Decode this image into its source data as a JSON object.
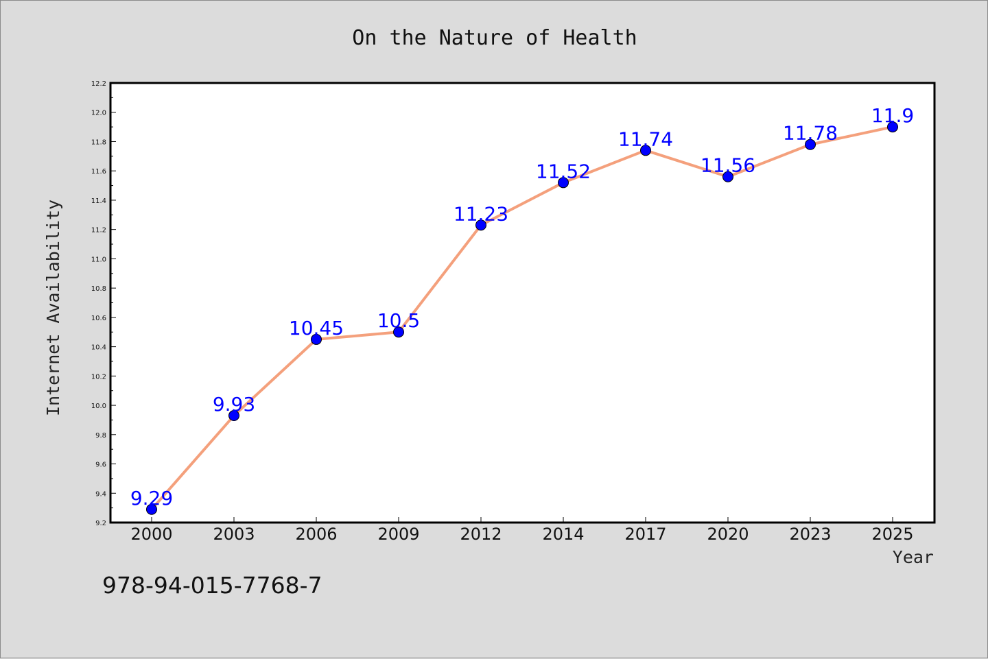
{
  "chart_data": {
    "type": "line",
    "title": "On the Nature of Health",
    "xlabel": "Year",
    "ylabel": "Internet Availability",
    "categories": [
      "2000",
      "2003",
      "2006",
      "2009",
      "2012",
      "2014",
      "2017",
      "2020",
      "2023",
      "2025"
    ],
    "series": [
      {
        "values": [
          9.29,
          9.93,
          10.45,
          10.5,
          11.23,
          11.52,
          11.74,
          11.56,
          11.78,
          11.9
        ]
      }
    ],
    "data_labels": [
      "9.29",
      "9.93",
      "10.45",
      "10.5",
      "11.23",
      "11.52",
      "11.74",
      "11.56",
      "11.78",
      "11.9"
    ],
    "ylim": [
      9.2,
      12.2
    ],
    "yticks": [
      "9.2",
      "9.4",
      "9.6",
      "9.8",
      "10.0",
      "10.2",
      "10.4",
      "10.6",
      "10.8",
      "11.0",
      "11.2",
      "11.4",
      "11.6",
      "11.8",
      "12.0",
      "12.2"
    ],
    "grid": false,
    "line_color": "#f4a07c",
    "marker_color": "#0000ff",
    "label_color": "#0000ff"
  },
  "annotation": "978-94-015-7768-7"
}
